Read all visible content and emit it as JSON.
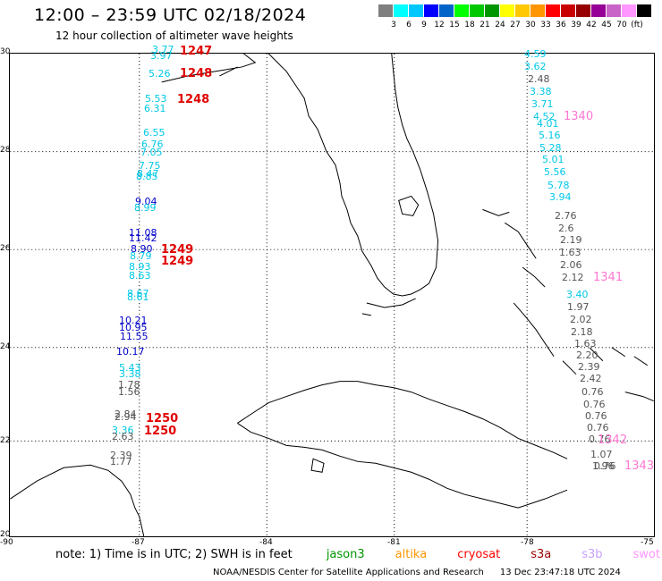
{
  "title": "12:00 – 23:59 UTC 02/18/2024",
  "subtitle": "12 hour collection of altimeter wave heights",
  "legend": {
    "colors": [
      "#7f7f7f",
      "#00ffff",
      "#00c8ff",
      "#0000ff",
      "#0064c8",
      "#00ff00",
      "#00c800",
      "#009600",
      "#ffff00",
      "#ffc800",
      "#ff9600",
      "#ff0000",
      "#c80000",
      "#960000",
      "#960096",
      "#c864c8",
      "#ff96ff",
      "#000000"
    ],
    "labels": [
      "3",
      "6",
      "9",
      "12",
      "15",
      "18",
      "21",
      "24",
      "27",
      "30",
      "33",
      "36",
      "39",
      "42",
      "45",
      "70",
      "(ft)"
    ]
  },
  "axes": {
    "lat_labels": [
      "30",
      "28",
      "26",
      "24",
      "22",
      "20"
    ],
    "lon_labels": [
      "-90",
      "-87",
      "-84",
      "-81",
      "-78",
      "-75"
    ]
  },
  "colors": {
    "cyan": "#00c8e6",
    "blue": "#0000c8",
    "gray": "#555555",
    "red": "#e00000",
    "pink": "#ff78d2"
  },
  "west_track": [
    {
      "v": "3.77",
      "c": "cyan"
    },
    {
      "v": "3.97",
      "c": "cyan"
    },
    {
      "v": "5.26",
      "c": "cyan"
    },
    {
      "v": "5.53",
      "c": "cyan"
    },
    {
      "v": "6.31",
      "c": "cyan"
    },
    {
      "v": "6.55",
      "c": "cyan"
    },
    {
      "v": "6.76",
      "c": "cyan"
    },
    {
      "v": "7.05",
      "c": "cyan"
    },
    {
      "v": "7.75",
      "c": "cyan"
    },
    {
      "v": "8.47",
      "c": "cyan"
    },
    {
      "v": "8.85",
      "c": "cyan"
    },
    {
      "v": "9.04",
      "c": "blue"
    },
    {
      "v": "8.99",
      "c": "cyan"
    },
    {
      "v": "11.08",
      "c": "blue"
    },
    {
      "v": "11.42",
      "c": "blue"
    },
    {
      "v": "8.90",
      "c": "blue"
    },
    {
      "v": "8.79",
      "c": "cyan"
    },
    {
      "v": "8.93",
      "c": "cyan"
    },
    {
      "v": "8.63",
      "c": "cyan"
    },
    {
      "v": "8.67",
      "c": "cyan"
    },
    {
      "v": "8.61",
      "c": "cyan"
    },
    {
      "v": "10.21",
      "c": "blue"
    },
    {
      "v": "10.95",
      "c": "blue"
    },
    {
      "v": "11.55",
      "c": "blue"
    },
    {
      "v": "10.17",
      "c": "blue"
    },
    {
      "v": "5.43",
      "c": "cyan"
    },
    {
      "v": "3.38",
      "c": "cyan"
    },
    {
      "v": "1.78",
      "c": "gray"
    },
    {
      "v": "1.56",
      "c": "gray"
    },
    {
      "v": "2.84",
      "c": "gray"
    },
    {
      "v": "2.94",
      "c": "gray"
    },
    {
      "v": "3.36",
      "c": "cyan"
    },
    {
      "v": "2.63",
      "c": "gray"
    },
    {
      "v": "2.39",
      "c": "gray"
    },
    {
      "v": "1.77",
      "c": "gray"
    }
  ],
  "east_track": [
    {
      "v": "4.59",
      "c": "cyan"
    },
    {
      "v": "3.62",
      "c": "cyan"
    },
    {
      "v": "2.48",
      "c": "gray"
    },
    {
      "v": "3.38",
      "c": "cyan"
    },
    {
      "v": "3.71",
      "c": "cyan"
    },
    {
      "v": "4.52",
      "c": "cyan"
    },
    {
      "v": "4.01",
      "c": "cyan"
    },
    {
      "v": "5.16",
      "c": "cyan"
    },
    {
      "v": "5.28",
      "c": "cyan"
    },
    {
      "v": "5.01",
      "c": "cyan"
    },
    {
      "v": "5.56",
      "c": "cyan"
    },
    {
      "v": "5.78",
      "c": "cyan"
    },
    {
      "v": "3.94",
      "c": "cyan"
    },
    {
      "v": "2.76",
      "c": "gray"
    },
    {
      "v": "2.6",
      "c": "gray"
    },
    {
      "v": "2.19",
      "c": "gray"
    },
    {
      "v": "1.63",
      "c": "gray"
    },
    {
      "v": "2.06",
      "c": "gray"
    },
    {
      "v": "2.12",
      "c": "gray"
    },
    {
      "v": "3.40",
      "c": "cyan"
    },
    {
      "v": "1.97",
      "c": "gray"
    },
    {
      "v": "2.02",
      "c": "gray"
    },
    {
      "v": "2.18",
      "c": "gray"
    },
    {
      "v": "1.63",
      "c": "gray"
    },
    {
      "v": "2.20",
      "c": "gray"
    },
    {
      "v": "2.39",
      "c": "gray"
    },
    {
      "v": "2.42",
      "c": "gray"
    },
    {
      "v": "0.76",
      "c": "gray"
    },
    {
      "v": "0.76",
      "c": "gray"
    },
    {
      "v": "0.76",
      "c": "gray"
    },
    {
      "v": "0.76",
      "c": "gray"
    },
    {
      "v": "0.76",
      "c": "gray"
    },
    {
      "v": "1.07",
      "c": "gray"
    },
    {
      "v": "1.96",
      "c": "gray"
    },
    {
      "v": "0.76",
      "c": "gray"
    }
  ],
  "pass_numbers": [
    "1247",
    "1248",
    "1248",
    "1249",
    "1249",
    "1250",
    "1250",
    "1340",
    "1341",
    "1342",
    "1343"
  ],
  "note": {
    "prefix": "note: 1) Time is in UTC; 2) SWH is in feet",
    "sats": [
      {
        "name": "jason3",
        "color": "#009600"
      },
      {
        "name": "altika",
        "color": "#ff9600"
      },
      {
        "name": "cryosat",
        "color": "#ff0000"
      },
      {
        "name": "s3a",
        "color": "#960000"
      },
      {
        "name": "s3b",
        "color": "#c8a0ff"
      },
      {
        "name": "swot",
        "color": "#ff96ff"
      }
    ]
  },
  "footer": {
    "credit": "NOAA/NESDIS Center for Satellite Applications and Research",
    "timestamp": "13 Dec 23:47:18 UTC 2024"
  }
}
